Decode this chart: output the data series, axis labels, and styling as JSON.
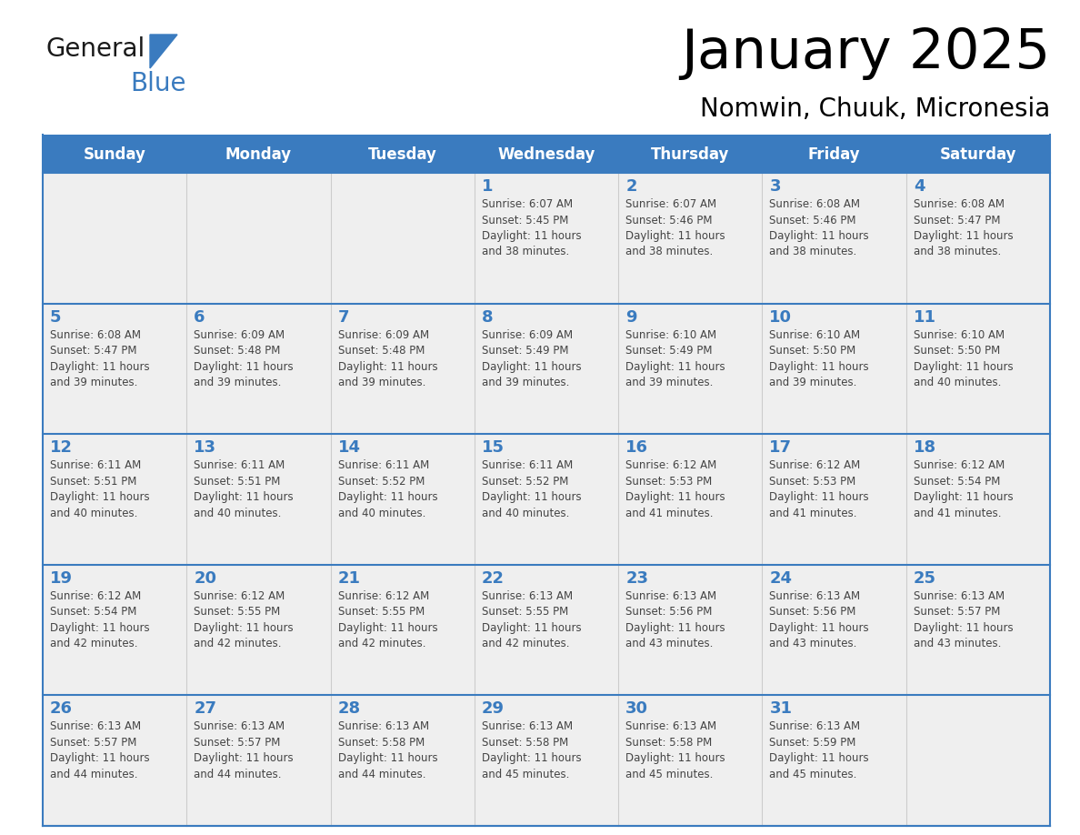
{
  "title": "January 2025",
  "subtitle": "Nomwin, Chuuk, Micronesia",
  "days_of_week": [
    "Sunday",
    "Monday",
    "Tuesday",
    "Wednesday",
    "Thursday",
    "Friday",
    "Saturday"
  ],
  "header_bg": "#3a7bbf",
  "header_text": "#ffffff",
  "cell_bg": "#efefef",
  "day_number_color": "#3a7bbf",
  "text_color": "#444444",
  "grid_color": "#cccccc",
  "line_color": "#3a7bbf",
  "logo_general_color": "#1a1a1a",
  "logo_blue_color": "#3a7bbf",
  "calendar_data": [
    [
      {
        "day": null,
        "info": ""
      },
      {
        "day": null,
        "info": ""
      },
      {
        "day": null,
        "info": ""
      },
      {
        "day": 1,
        "info": "Sunrise: 6:07 AM\nSunset: 5:45 PM\nDaylight: 11 hours\nand 38 minutes."
      },
      {
        "day": 2,
        "info": "Sunrise: 6:07 AM\nSunset: 5:46 PM\nDaylight: 11 hours\nand 38 minutes."
      },
      {
        "day": 3,
        "info": "Sunrise: 6:08 AM\nSunset: 5:46 PM\nDaylight: 11 hours\nand 38 minutes."
      },
      {
        "day": 4,
        "info": "Sunrise: 6:08 AM\nSunset: 5:47 PM\nDaylight: 11 hours\nand 38 minutes."
      }
    ],
    [
      {
        "day": 5,
        "info": "Sunrise: 6:08 AM\nSunset: 5:47 PM\nDaylight: 11 hours\nand 39 minutes."
      },
      {
        "day": 6,
        "info": "Sunrise: 6:09 AM\nSunset: 5:48 PM\nDaylight: 11 hours\nand 39 minutes."
      },
      {
        "day": 7,
        "info": "Sunrise: 6:09 AM\nSunset: 5:48 PM\nDaylight: 11 hours\nand 39 minutes."
      },
      {
        "day": 8,
        "info": "Sunrise: 6:09 AM\nSunset: 5:49 PM\nDaylight: 11 hours\nand 39 minutes."
      },
      {
        "day": 9,
        "info": "Sunrise: 6:10 AM\nSunset: 5:49 PM\nDaylight: 11 hours\nand 39 minutes."
      },
      {
        "day": 10,
        "info": "Sunrise: 6:10 AM\nSunset: 5:50 PM\nDaylight: 11 hours\nand 39 minutes."
      },
      {
        "day": 11,
        "info": "Sunrise: 6:10 AM\nSunset: 5:50 PM\nDaylight: 11 hours\nand 40 minutes."
      }
    ],
    [
      {
        "day": 12,
        "info": "Sunrise: 6:11 AM\nSunset: 5:51 PM\nDaylight: 11 hours\nand 40 minutes."
      },
      {
        "day": 13,
        "info": "Sunrise: 6:11 AM\nSunset: 5:51 PM\nDaylight: 11 hours\nand 40 minutes."
      },
      {
        "day": 14,
        "info": "Sunrise: 6:11 AM\nSunset: 5:52 PM\nDaylight: 11 hours\nand 40 minutes."
      },
      {
        "day": 15,
        "info": "Sunrise: 6:11 AM\nSunset: 5:52 PM\nDaylight: 11 hours\nand 40 minutes."
      },
      {
        "day": 16,
        "info": "Sunrise: 6:12 AM\nSunset: 5:53 PM\nDaylight: 11 hours\nand 41 minutes."
      },
      {
        "day": 17,
        "info": "Sunrise: 6:12 AM\nSunset: 5:53 PM\nDaylight: 11 hours\nand 41 minutes."
      },
      {
        "day": 18,
        "info": "Sunrise: 6:12 AM\nSunset: 5:54 PM\nDaylight: 11 hours\nand 41 minutes."
      }
    ],
    [
      {
        "day": 19,
        "info": "Sunrise: 6:12 AM\nSunset: 5:54 PM\nDaylight: 11 hours\nand 42 minutes."
      },
      {
        "day": 20,
        "info": "Sunrise: 6:12 AM\nSunset: 5:55 PM\nDaylight: 11 hours\nand 42 minutes."
      },
      {
        "day": 21,
        "info": "Sunrise: 6:12 AM\nSunset: 5:55 PM\nDaylight: 11 hours\nand 42 minutes."
      },
      {
        "day": 22,
        "info": "Sunrise: 6:13 AM\nSunset: 5:55 PM\nDaylight: 11 hours\nand 42 minutes."
      },
      {
        "day": 23,
        "info": "Sunrise: 6:13 AM\nSunset: 5:56 PM\nDaylight: 11 hours\nand 43 minutes."
      },
      {
        "day": 24,
        "info": "Sunrise: 6:13 AM\nSunset: 5:56 PM\nDaylight: 11 hours\nand 43 minutes."
      },
      {
        "day": 25,
        "info": "Sunrise: 6:13 AM\nSunset: 5:57 PM\nDaylight: 11 hours\nand 43 minutes."
      }
    ],
    [
      {
        "day": 26,
        "info": "Sunrise: 6:13 AM\nSunset: 5:57 PM\nDaylight: 11 hours\nand 44 minutes."
      },
      {
        "day": 27,
        "info": "Sunrise: 6:13 AM\nSunset: 5:57 PM\nDaylight: 11 hours\nand 44 minutes."
      },
      {
        "day": 28,
        "info": "Sunrise: 6:13 AM\nSunset: 5:58 PM\nDaylight: 11 hours\nand 44 minutes."
      },
      {
        "day": 29,
        "info": "Sunrise: 6:13 AM\nSunset: 5:58 PM\nDaylight: 11 hours\nand 45 minutes."
      },
      {
        "day": 30,
        "info": "Sunrise: 6:13 AM\nSunset: 5:58 PM\nDaylight: 11 hours\nand 45 minutes."
      },
      {
        "day": 31,
        "info": "Sunrise: 6:13 AM\nSunset: 5:59 PM\nDaylight: 11 hours\nand 45 minutes."
      },
      {
        "day": null,
        "info": ""
      }
    ]
  ]
}
